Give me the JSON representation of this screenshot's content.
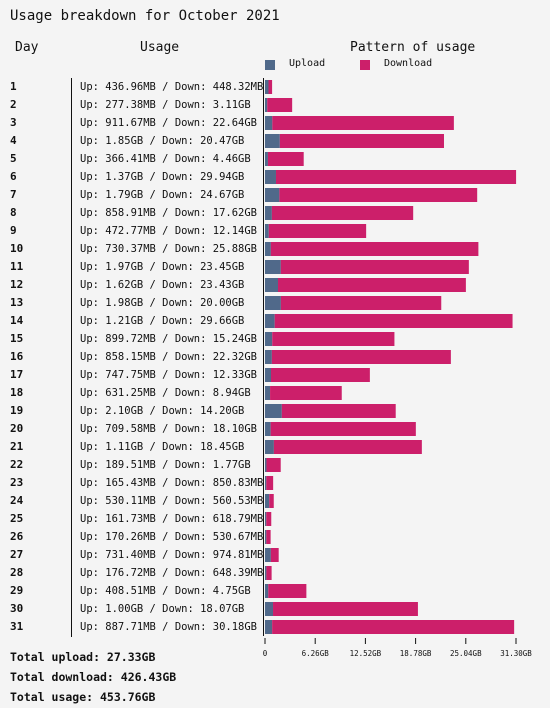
{
  "title": "Usage breakdown for October 2021",
  "headers": {
    "day": "Day",
    "usage": "Usage",
    "pattern": "Pattern of usage"
  },
  "legend": {
    "upload": "Upload",
    "download": "Download"
  },
  "colors": {
    "upload": "#50698a",
    "download": "#cc1f6a",
    "background": "#f4f4f4"
  },
  "totals": {
    "upload": "Total upload: 27.33GB",
    "download": "Total download: 426.43GB",
    "usage": "Total usage: 453.76GB"
  },
  "rows": [
    {
      "day": "1",
      "usage": "Up: 436.96MB / Down: 448.32MB"
    },
    {
      "day": "2",
      "usage": "Up: 277.38MB / Down: 3.11GB"
    },
    {
      "day": "3",
      "usage": "Up: 911.67MB / Down: 22.64GB"
    },
    {
      "day": "4",
      "usage": "Up: 1.85GB / Down: 20.47GB"
    },
    {
      "day": "5",
      "usage": "Up: 366.41MB / Down: 4.46GB"
    },
    {
      "day": "6",
      "usage": "Up: 1.37GB / Down: 29.94GB"
    },
    {
      "day": "7",
      "usage": "Up: 1.79GB / Down: 24.67GB"
    },
    {
      "day": "8",
      "usage": "Up: 858.91MB / Down: 17.62GB"
    },
    {
      "day": "9",
      "usage": "Up: 472.77MB / Down: 12.14GB"
    },
    {
      "day": "10",
      "usage": "Up: 730.37MB / Down: 25.88GB"
    },
    {
      "day": "11",
      "usage": "Up: 1.97GB / Down: 23.45GB"
    },
    {
      "day": "12",
      "usage": "Up: 1.62GB / Down: 23.43GB"
    },
    {
      "day": "13",
      "usage": "Up: 1.98GB / Down: 20.00GB"
    },
    {
      "day": "14",
      "usage": "Up: 1.21GB / Down: 29.66GB"
    },
    {
      "day": "15",
      "usage": "Up: 899.72MB / Down: 15.24GB"
    },
    {
      "day": "16",
      "usage": "Up: 858.15MB / Down: 22.32GB"
    },
    {
      "day": "17",
      "usage": "Up: 747.75MB / Down: 12.33GB"
    },
    {
      "day": "18",
      "usage": "Up: 631.25MB / Down: 8.94GB"
    },
    {
      "day": "19",
      "usage": "Up: 2.10GB / Down: 14.20GB"
    },
    {
      "day": "20",
      "usage": "Up: 709.58MB / Down: 18.10GB"
    },
    {
      "day": "21",
      "usage": "Up: 1.11GB / Down: 18.45GB"
    },
    {
      "day": "22",
      "usage": "Up: 189.51MB / Down: 1.77GB"
    },
    {
      "day": "23",
      "usage": "Up: 165.43MB / Down: 850.83MB"
    },
    {
      "day": "24",
      "usage": "Up: 530.11MB / Down: 560.53MB"
    },
    {
      "day": "25",
      "usage": "Up: 161.73MB / Down: 618.79MB"
    },
    {
      "day": "26",
      "usage": "Up: 170.26MB / Down: 530.67MB"
    },
    {
      "day": "27",
      "usage": "Up: 731.40MB / Down: 974.81MB"
    },
    {
      "day": "28",
      "usage": "Up: 176.72MB / Down: 648.39MB"
    },
    {
      "day": "29",
      "usage": "Up: 408.51MB / Down: 4.75GB"
    },
    {
      "day": "30",
      "usage": "Up: 1.00GB / Down: 18.07GB"
    },
    {
      "day": "31",
      "usage": "Up: 887.71MB / Down: 30.18GB"
    }
  ],
  "chart_data": {
    "type": "bar",
    "orientation": "horizontal",
    "stacked": true,
    "title": "Pattern of usage",
    "unit": "GB",
    "categories": [
      "1",
      "2",
      "3",
      "4",
      "5",
      "6",
      "7",
      "8",
      "9",
      "10",
      "11",
      "12",
      "13",
      "14",
      "15",
      "16",
      "17",
      "18",
      "19",
      "20",
      "21",
      "22",
      "23",
      "24",
      "25",
      "26",
      "27",
      "28",
      "29",
      "30",
      "31"
    ],
    "series": [
      {
        "name": "Upload",
        "values": [
          0.437,
          0.277,
          0.912,
          1.85,
          0.366,
          1.37,
          1.79,
          0.859,
          0.473,
          0.73,
          1.97,
          1.62,
          1.98,
          1.21,
          0.9,
          0.858,
          0.748,
          0.631,
          2.1,
          0.71,
          1.11,
          0.19,
          0.165,
          0.53,
          0.162,
          0.17,
          0.731,
          0.177,
          0.409,
          1.0,
          0.888
        ]
      },
      {
        "name": "Download",
        "values": [
          0.448,
          3.11,
          22.64,
          20.47,
          4.46,
          29.94,
          24.67,
          17.62,
          12.14,
          25.88,
          23.45,
          23.43,
          20.0,
          29.66,
          15.24,
          22.32,
          12.33,
          8.94,
          14.2,
          18.1,
          18.45,
          1.77,
          0.851,
          0.561,
          0.619,
          0.531,
          0.975,
          0.648,
          4.75,
          18.07,
          30.18
        ]
      }
    ],
    "xlim": [
      0,
      31.3
    ],
    "xticks": [
      "0",
      "6.26GB",
      "12.52GB",
      "18.78GB",
      "25.04GB",
      "31.30GB"
    ],
    "legend": "top"
  }
}
